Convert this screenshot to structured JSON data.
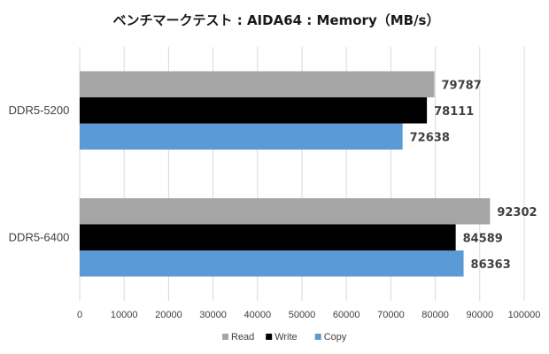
{
  "chart_data": {
    "type": "bar",
    "orientation": "horizontal",
    "title": "ベンチマークテスト : AIDA64 : Memory（MB/s）",
    "categories": [
      "DDR5-5200",
      "DDR5-6400"
    ],
    "series": [
      {
        "name": "Read",
        "color": "#a5a5a5",
        "values": [
          79787,
          92302
        ]
      },
      {
        "name": "Write",
        "color": "#000000",
        "values": [
          78111,
          84589
        ]
      },
      {
        "name": "Copy",
        "color": "#5b9bd5",
        "values": [
          72638,
          86363
        ]
      }
    ],
    "xlim": [
      0,
      100000
    ],
    "xticks": [
      "0",
      "10000",
      "20000",
      "30000",
      "40000",
      "50000",
      "60000",
      "70000",
      "80000",
      "90000",
      "100000"
    ],
    "grid": true,
    "legend_position": "bottom"
  }
}
